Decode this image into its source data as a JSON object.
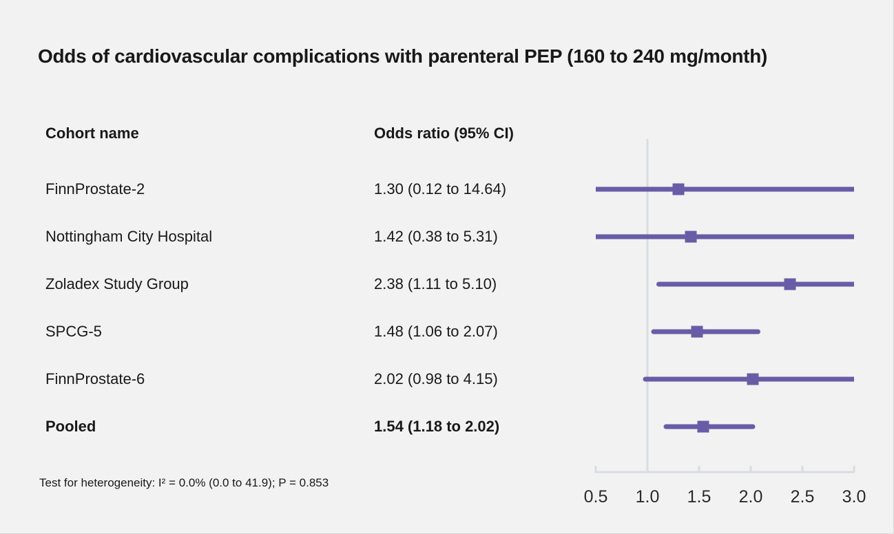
{
  "title": "Odds of cardiovascular complications with parenteral PEP (160 to 240 mg/month)",
  "columns": {
    "cohort": "Cohort name",
    "odds_ratio": "Odds ratio (95% CI)"
  },
  "footnote": "Test for heterogeneity: I² = 0.0% (0.0 to 41.9); P = 0.853",
  "colors": {
    "accent": "#695CA7",
    "axis": "#D8DCE3",
    "text": "#191919",
    "axis_label_text": "#2B2B2B",
    "background": "#F2F2F2"
  },
  "chart_data": {
    "type": "forest",
    "title": "Odds of cardiovascular complications with parenteral PEP (160 to 240 mg/month)",
    "effect_measure": "Odds ratio",
    "x_axis": {
      "range": [
        0.5,
        3.0
      ],
      "ticks": [
        0.5,
        1.0,
        1.5,
        2.0,
        2.5,
        3.0
      ],
      "tick_labels": [
        "0.5",
        "1.0",
        "1.5",
        "2.0",
        "2.5",
        "3.0"
      ],
      "reference_line": 1.0,
      "scale": "linear",
      "grid": false
    },
    "rows": [
      {
        "label": "FinnProstate-2",
        "or_text": "1.30 (0.12 to 14.64)",
        "estimate": 1.3,
        "ci_low": 0.12,
        "ci_high": 14.64,
        "bold": false
      },
      {
        "label": "Nottingham City Hospital",
        "or_text": "1.42 (0.38 to 5.31)",
        "estimate": 1.42,
        "ci_low": 0.38,
        "ci_high": 5.31,
        "bold": false
      },
      {
        "label": "Zoladex Study Group",
        "or_text": "2.38 (1.11 to 5.10)",
        "estimate": 2.38,
        "ci_low": 1.11,
        "ci_high": 5.1,
        "bold": false
      },
      {
        "label": "SPCG-5",
        "or_text": "1.48 (1.06 to 2.07)",
        "estimate": 1.48,
        "ci_low": 1.06,
        "ci_high": 2.07,
        "bold": false
      },
      {
        "label": "FinnProstate-6",
        "or_text": "2.02 (0.98 to 4.15)",
        "estimate": 2.02,
        "ci_low": 0.98,
        "ci_high": 4.15,
        "bold": false
      },
      {
        "label": "Pooled",
        "or_text": "1.54 (1.18 to 2.02)",
        "estimate": 1.54,
        "ci_low": 1.18,
        "ci_high": 2.02,
        "bold": true
      }
    ]
  }
}
